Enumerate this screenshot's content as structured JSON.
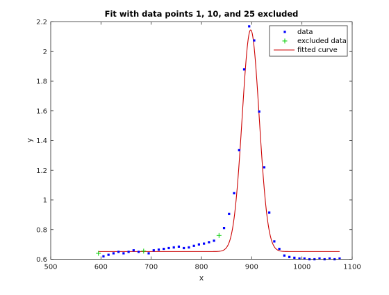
{
  "chart_data": {
    "type": "scatter",
    "title": "Fit with data points 1, 10, and 25 excluded",
    "xlabel": "x",
    "ylabel": "y",
    "xlim": [
      500,
      1100
    ],
    "ylim": [
      0.6,
      2.2
    ],
    "xticks": [
      500,
      600,
      700,
      800,
      900,
      1000,
      1100
    ],
    "yticks": [
      0.6,
      0.8,
      1,
      1.2,
      1.4,
      1.6,
      1.8,
      2,
      2.2
    ],
    "xtick_labels": [
      "500",
      "600",
      "700",
      "800",
      "900",
      "1000",
      "1100"
    ],
    "ytick_labels": [
      "0.6",
      "0.8",
      "1",
      "1.2",
      "1.4",
      "1.6",
      "1.8",
      "2",
      "2.2"
    ],
    "grid": false,
    "legend_position": "top-right",
    "series": [
      {
        "name": "data",
        "kind": "points",
        "marker": "dot",
        "color": "#0000ff",
        "x": [
          605,
          615,
          625,
          635,
          645,
          655,
          665,
          675,
          695,
          705,
          715,
          725,
          735,
          745,
          755,
          765,
          775,
          785,
          795,
          805,
          815,
          825,
          845,
          855,
          865,
          875,
          885,
          895,
          905,
          915,
          925,
          935,
          945,
          955,
          965,
          975,
          985,
          995,
          1005,
          1015,
          1025,
          1035,
          1045,
          1055,
          1065,
          1075
        ],
        "y": [
          0.62,
          0.63,
          0.64,
          0.65,
          0.64,
          0.65,
          0.66,
          0.65,
          0.64,
          0.66,
          0.665,
          0.67,
          0.675,
          0.68,
          0.685,
          0.675,
          0.68,
          0.69,
          0.7,
          0.705,
          0.715,
          0.725,
          0.81,
          0.905,
          1.045,
          1.335,
          1.88,
          2.17,
          2.075,
          1.595,
          1.22,
          0.915,
          0.72,
          0.67,
          0.625,
          0.615,
          0.61,
          0.605,
          0.605,
          0.6,
          0.6,
          0.605,
          0.6,
          0.605,
          0.6,
          0.605
        ]
      },
      {
        "name": "excluded data",
        "kind": "points",
        "marker": "plus",
        "color": "#00cc00",
        "x": [
          595,
          685,
          835
        ],
        "y": [
          0.64,
          0.655,
          0.76
        ]
      },
      {
        "name": "fitted curve",
        "kind": "curve",
        "color": "#cc0000",
        "model": "baseline + amplitude * exp(-((x - center) / width)^2)",
        "baseline": 0.652,
        "amplitude": 1.494,
        "center": 898,
        "width": 24,
        "x_range": [
          595,
          1075
        ]
      }
    ]
  }
}
